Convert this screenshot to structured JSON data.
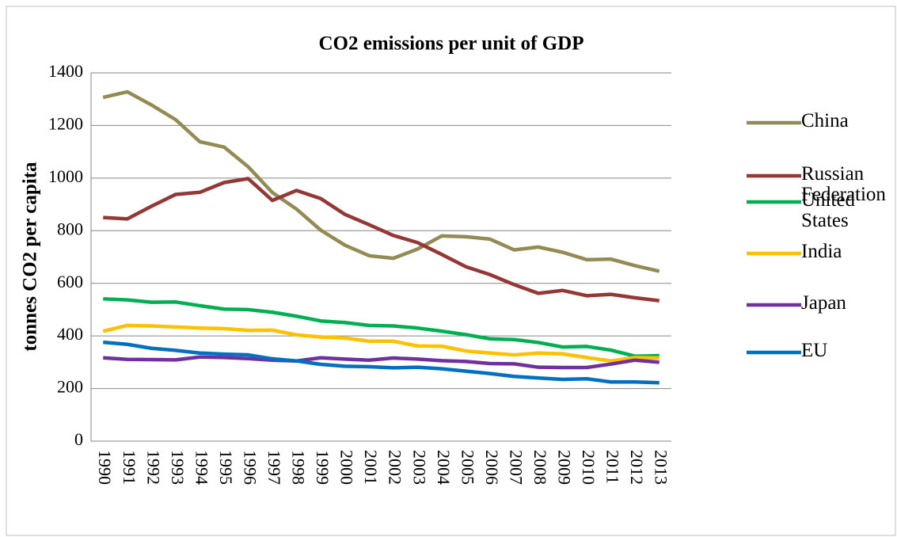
{
  "chart_data": {
    "type": "line",
    "title": "CO2 emissions per unit of GDP",
    "y_label": "tonnes CO2 per capita",
    "categories": [
      "1990",
      "1991",
      "1992",
      "1993",
      "1994",
      "1995",
      "1996",
      "1997",
      "1998",
      "1999",
      "2000",
      "2001",
      "2002",
      "2003",
      "2004",
      "2005",
      "2006",
      "2007",
      "2008",
      "2009",
      "2010",
      "2011",
      "2012",
      "2013"
    ],
    "series": [
      {
        "name": "China",
        "color": "#948a54",
        "values": [
          1307,
          1328,
          1278,
          1222,
          1138,
          1118,
          1043,
          945,
          882,
          802,
          745,
          705,
          695,
          730,
          780,
          777,
          768,
          727,
          738,
          718,
          690,
          692,
          667,
          646
        ]
      },
      {
        "name": "Russian Federation",
        "color": "#953735",
        "values": [
          850,
          845,
          893,
          938,
          946,
          983,
          998,
          915,
          953,
          922,
          862,
          823,
          782,
          755,
          710,
          663,
          633,
          595,
          562,
          573,
          553,
          558,
          545,
          534
        ]
      },
      {
        "name": "United States",
        "color": "#00b050",
        "values": [
          541,
          537,
          528,
          529,
          515,
          502,
          500,
          490,
          475,
          457,
          451,
          440,
          438,
          430,
          418,
          405,
          389,
          386,
          375,
          358,
          360,
          346,
          323,
          325
        ]
      },
      {
        "name": "India",
        "color": "#ffc000",
        "values": [
          418,
          440,
          438,
          434,
          430,
          428,
          421,
          422,
          404,
          396,
          392,
          380,
          380,
          362,
          361,
          343,
          335,
          328,
          335,
          332,
          318,
          305,
          318,
          316
        ]
      },
      {
        "name": "Japan",
        "color": "#7030a0",
        "values": [
          317,
          311,
          310,
          309,
          320,
          318,
          314,
          308,
          305,
          317,
          312,
          308,
          316,
          312,
          306,
          303,
          295,
          294,
          281,
          280,
          280,
          293,
          308,
          300
        ]
      },
      {
        "name": "EU",
        "color": "#0070c0",
        "values": [
          376,
          368,
          353,
          345,
          335,
          331,
          328,
          313,
          305,
          292,
          285,
          283,
          279,
          281,
          275,
          266,
          257,
          246,
          240,
          235,
          237,
          225,
          225,
          222
        ]
      }
    ],
    "ylim": [
      0,
      1400
    ],
    "yticks": [
      0,
      200,
      400,
      600,
      800,
      1000,
      1200,
      1400
    ],
    "grid": true,
    "legend": "right"
  }
}
